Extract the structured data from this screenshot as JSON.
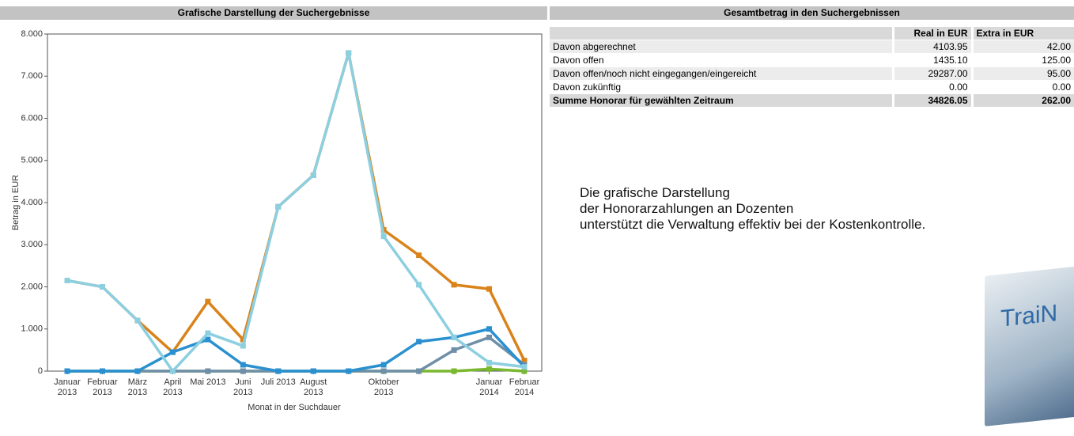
{
  "chart_data": {
    "type": "line",
    "title": "Grafische Darstellung der Suchergebnisse",
    "y_label": "Betrag in EUR",
    "x_label": "Monat in der Suchdauer",
    "categories": [
      "Januar\n2013",
      "Februar\n2013",
      "März\n2013",
      "April\n2013",
      "Mai 2013",
      "Juni\n2013",
      "Juli 2013",
      "August\n2013",
      null,
      "Oktober\n2013",
      null,
      null,
      "Januar\n2014",
      "Februar\n2014"
    ],
    "ylim": [
      0,
      8000
    ],
    "yticks": [
      0,
      {
        "value": 1000,
        "label": "1.000"
      },
      {
        "value": 2000,
        "label": "2.000"
      },
      {
        "value": 3000,
        "label": "3.000"
      },
      {
        "value": 4000,
        "label": "4.000"
      },
      {
        "value": 5000,
        "label": "5.000"
      },
      {
        "value": 6000,
        "label": "6.000"
      },
      {
        "value": 7000,
        "label": "7.000"
      },
      {
        "value": 8000,
        "label": "8.000"
      }
    ],
    "grid": false,
    "series": [
      {
        "color": "#7ab830",
        "values": [
          0,
          0,
          0,
          0,
          0,
          0,
          0,
          0,
          0,
          0,
          0,
          0,
          50,
          0
        ]
      },
      {
        "color": "#d9831a",
        "values": [
          2150,
          2000,
          1200,
          450,
          1650,
          750,
          3900,
          4650,
          7550,
          3350,
          2750,
          2050,
          1950,
          250
        ]
      },
      {
        "color": "#6f8fa8",
        "values": [
          0,
          0,
          0,
          0,
          0,
          0,
          0,
          0,
          0,
          0,
          0,
          500,
          800,
          150
        ]
      },
      {
        "color": "#2a90cf",
        "values": [
          0,
          0,
          0,
          450,
          750,
          150,
          0,
          0,
          0,
          150,
          700,
          800,
          1000,
          100
        ]
      },
      {
        "color": "#8ccfe0",
        "values": [
          2150,
          2000,
          1200,
          0,
          900,
          600,
          3900,
          4650,
          7550,
          3200,
          2050,
          800,
          200,
          100
        ]
      }
    ]
  },
  "table": {
    "title": "Gesamtbetrag in den Suchergebnissen",
    "columns": [
      "Real in EUR",
      "Extra in EUR"
    ],
    "rows": [
      [
        "Davon abgerechnet",
        "4103.95",
        "42.00"
      ],
      [
        "Davon offen",
        "1435.10",
        "125.00"
      ],
      [
        "Davon offen/noch nicht eingegangen/eingereicht",
        "29287.00",
        "95.00"
      ],
      [
        "Davon zukünftig",
        "0.00",
        "0.00"
      ]
    ],
    "total": [
      "Summe Honorar für gewählten Zeitraum",
      "34826.05",
      "262.00"
    ]
  },
  "description": [
    "Die grafische Darstellung",
    "der Honorarzahlungen an Dozenten",
    "unterstützt die Verwaltung effektiv bei der Kostenkontrolle."
  ],
  "product_box": {
    "brand": "TraiN"
  }
}
